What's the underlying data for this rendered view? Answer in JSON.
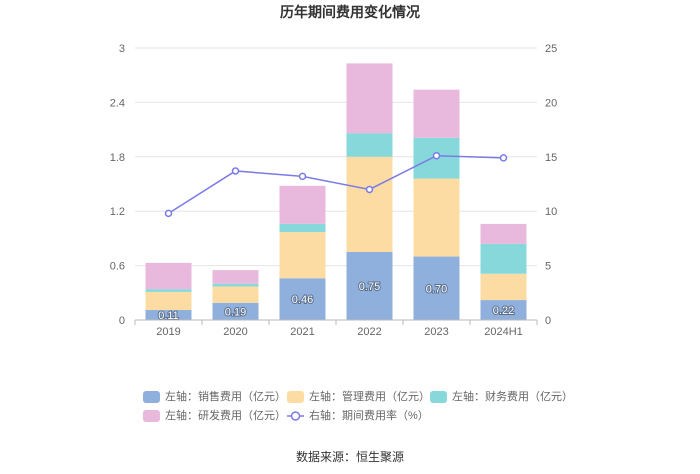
{
  "source": "数据来源：恒生聚源",
  "chart_data": {
    "type": "bar",
    "stacked": true,
    "title": "历年期间费用变化情况",
    "xlabel": "",
    "ylabel": "",
    "categories": [
      "2019",
      "2020",
      "2021",
      "2022",
      "2023",
      "2024H1"
    ],
    "y_left": {
      "range": [
        0,
        3
      ],
      "ticks": [
        "0",
        "0.6",
        "1.2",
        "1.8",
        "2.4",
        "3"
      ]
    },
    "y_right": {
      "range": [
        0,
        25
      ],
      "ticks": [
        "0",
        "5",
        "10",
        "15",
        "20",
        "25"
      ]
    },
    "grid": true,
    "legend_position": "bottom",
    "series": [
      {
        "name": "左轴：销售费用（亿元）",
        "type": "bar",
        "axis": "left",
        "color": "#8fb0dd",
        "values": [
          0.11,
          0.19,
          0.46,
          0.75,
          0.7,
          0.22
        ],
        "data_labels": [
          "0.11",
          "0.19",
          "0.46",
          "0.75",
          "0.70",
          "0.22"
        ]
      },
      {
        "name": "左轴：管理费用（亿元）",
        "type": "bar",
        "axis": "left",
        "color": "#fddca3",
        "values": [
          0.2,
          0.18,
          0.51,
          1.05,
          0.86,
          0.29
        ]
      },
      {
        "name": "左轴：财务费用（亿元）",
        "type": "bar",
        "axis": "left",
        "color": "#86d8db",
        "values": [
          0.03,
          0.03,
          0.09,
          0.26,
          0.45,
          0.33
        ]
      },
      {
        "name": "左轴：研发费用（亿元）",
        "type": "bar",
        "axis": "left",
        "color": "#e8b9dc",
        "values": [
          0.29,
          0.15,
          0.42,
          0.77,
          0.53,
          0.22
        ]
      },
      {
        "name": "右轴：期间费用率（%）",
        "type": "line",
        "axis": "right",
        "color": "#7b7be6",
        "values": [
          9.8,
          13.7,
          13.2,
          12.0,
          15.1,
          14.9
        ]
      }
    ]
  }
}
